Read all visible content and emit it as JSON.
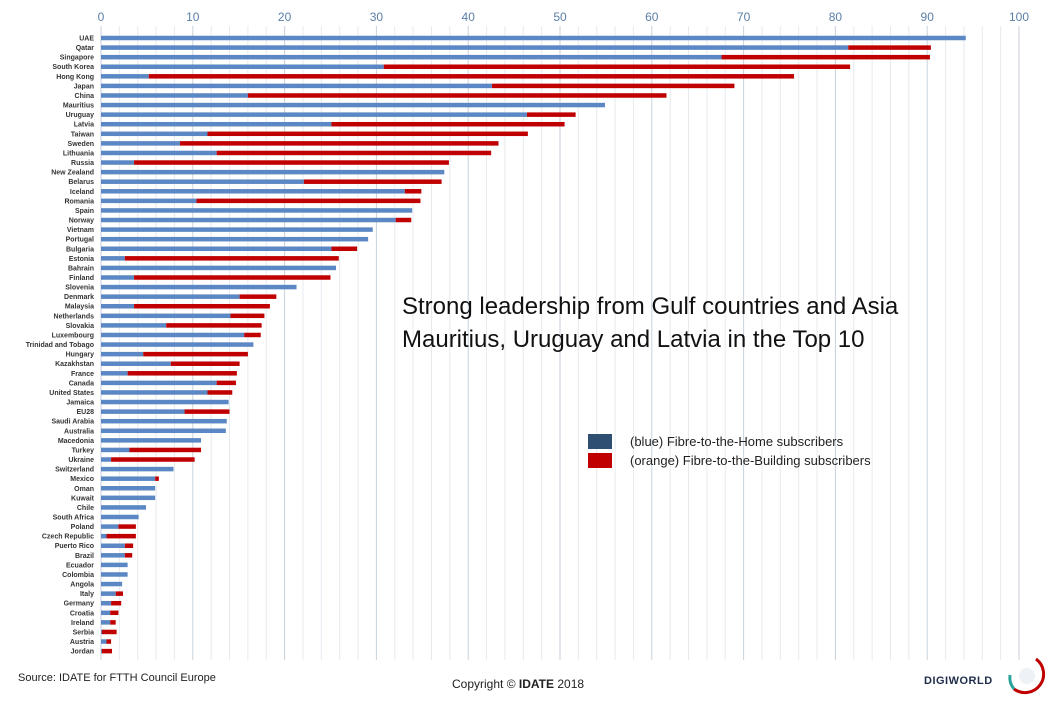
{
  "chart_data": {
    "type": "bar",
    "orientation": "horizontal",
    "stacked": true,
    "title": "",
    "xlabel": "",
    "ylabel": "",
    "xlim": [
      0,
      100
    ],
    "x_ticks": [
      0,
      10,
      20,
      30,
      40,
      50,
      60,
      70,
      80,
      90,
      100
    ],
    "grid": true,
    "categories": [
      "UAE",
      "Qatar",
      "Singapore",
      "South Korea",
      "Hong Kong",
      "Japan",
      "China",
      "Mauritius",
      "Uruguay",
      "Latvia",
      "Taiwan",
      "Sweden",
      "Lithuania",
      "Russia",
      "New Zealand",
      "Belarus",
      "Iceland",
      "Romania",
      "Spain",
      "Norway",
      "Vietnam",
      "Portugal",
      "Bulgaria",
      "Estonia",
      "Bahrain",
      "Finland",
      "Slovenia",
      "Denmark",
      "Malaysia",
      "Netherlands",
      "Slovakia",
      "Luxembourg",
      "Trinidad and Tobago",
      "Hungary",
      "Kazakhstan",
      "France",
      "Canada",
      "United States",
      "Jamaica",
      "EU28",
      "Saudi Arabia",
      "Australia",
      "Macedonia",
      "Turkey",
      "Ukraine",
      "Switzerland",
      "Mexico",
      "Oman",
      "Kuwait",
      "Chile",
      "South Africa",
      "Poland",
      "Czech Republic",
      "Puerto Rico",
      "Brazil",
      "Ecuador",
      "Colombia",
      "Angola",
      "Italy",
      "Germany",
      "Croatia",
      "Ireland",
      "Serbia",
      "Austria",
      "Jordan"
    ],
    "series": [
      {
        "name": "(blue) Fibre-to-the-Home subscribers",
        "color": "#5b88c4",
        "values": [
          94.2,
          81.4,
          67.6,
          30.8,
          5.2,
          42.6,
          16.0,
          54.9,
          46.4,
          25.1,
          11.6,
          8.6,
          12.6,
          3.6,
          37.4,
          22.1,
          33.1,
          10.4,
          33.9,
          32.1,
          29.6,
          29.1,
          25.1,
          2.6,
          25.6,
          3.6,
          21.3,
          15.1,
          3.6,
          14.1,
          7.1,
          15.6,
          16.6,
          4.6,
          7.6,
          2.9,
          12.6,
          11.6,
          13.9,
          9.1,
          13.7,
          13.6,
          10.9,
          3.1,
          1.1,
          7.9,
          5.9,
          5.9,
          5.9,
          4.9,
          4.1,
          1.9,
          0.6,
          2.6,
          2.6,
          2.9,
          2.9,
          2.3,
          1.6,
          1.1,
          1.0,
          1.0,
          0.1,
          0.6,
          0.1
        ]
      },
      {
        "name": "(orange) Fibre-to-the-Building subscribers",
        "color": "#c00000",
        "values": [
          0,
          9.0,
          22.7,
          50.8,
          70.3,
          26.4,
          45.6,
          0,
          5.3,
          25.4,
          34.9,
          34.7,
          29.9,
          34.3,
          0,
          15.0,
          1.8,
          24.4,
          0,
          1.7,
          0,
          0,
          2.8,
          23.3,
          0,
          21.4,
          0,
          4.0,
          14.8,
          3.7,
          10.4,
          1.8,
          0,
          11.4,
          7.5,
          11.9,
          2.1,
          2.7,
          0,
          4.9,
          0,
          0,
          0,
          7.8,
          9.1,
          0,
          0.4,
          0,
          0,
          0,
          0,
          1.9,
          3.2,
          0.9,
          0.8,
          0,
          0,
          0,
          0.8,
          1.1,
          0.9,
          0.6,
          1.6,
          0.5,
          1.1
        ]
      }
    ]
  },
  "headline": {
    "line1": "Strong leadership from Gulf countries and Asia",
    "line2": "Mauritius, Uruguay and Latvia in the Top 10"
  },
  "legend": {
    "ftth_label": "(blue) Fibre-to-the-Home subscribers",
    "ftth_color": "#2e4e72",
    "fttb_label": "(orange) Fibre-to-the-Building subscribers",
    "fttb_color": "#c00000"
  },
  "footer": {
    "source": "Source: IDATE for FTTH Council Europe",
    "copyright_prefix": "Copyright ©",
    "copyright_brand": "IDATE",
    "copyright_year": "2018"
  },
  "logo": {
    "text": "DIGIWORLD",
    "icon": "idate-years-badge-icon"
  }
}
